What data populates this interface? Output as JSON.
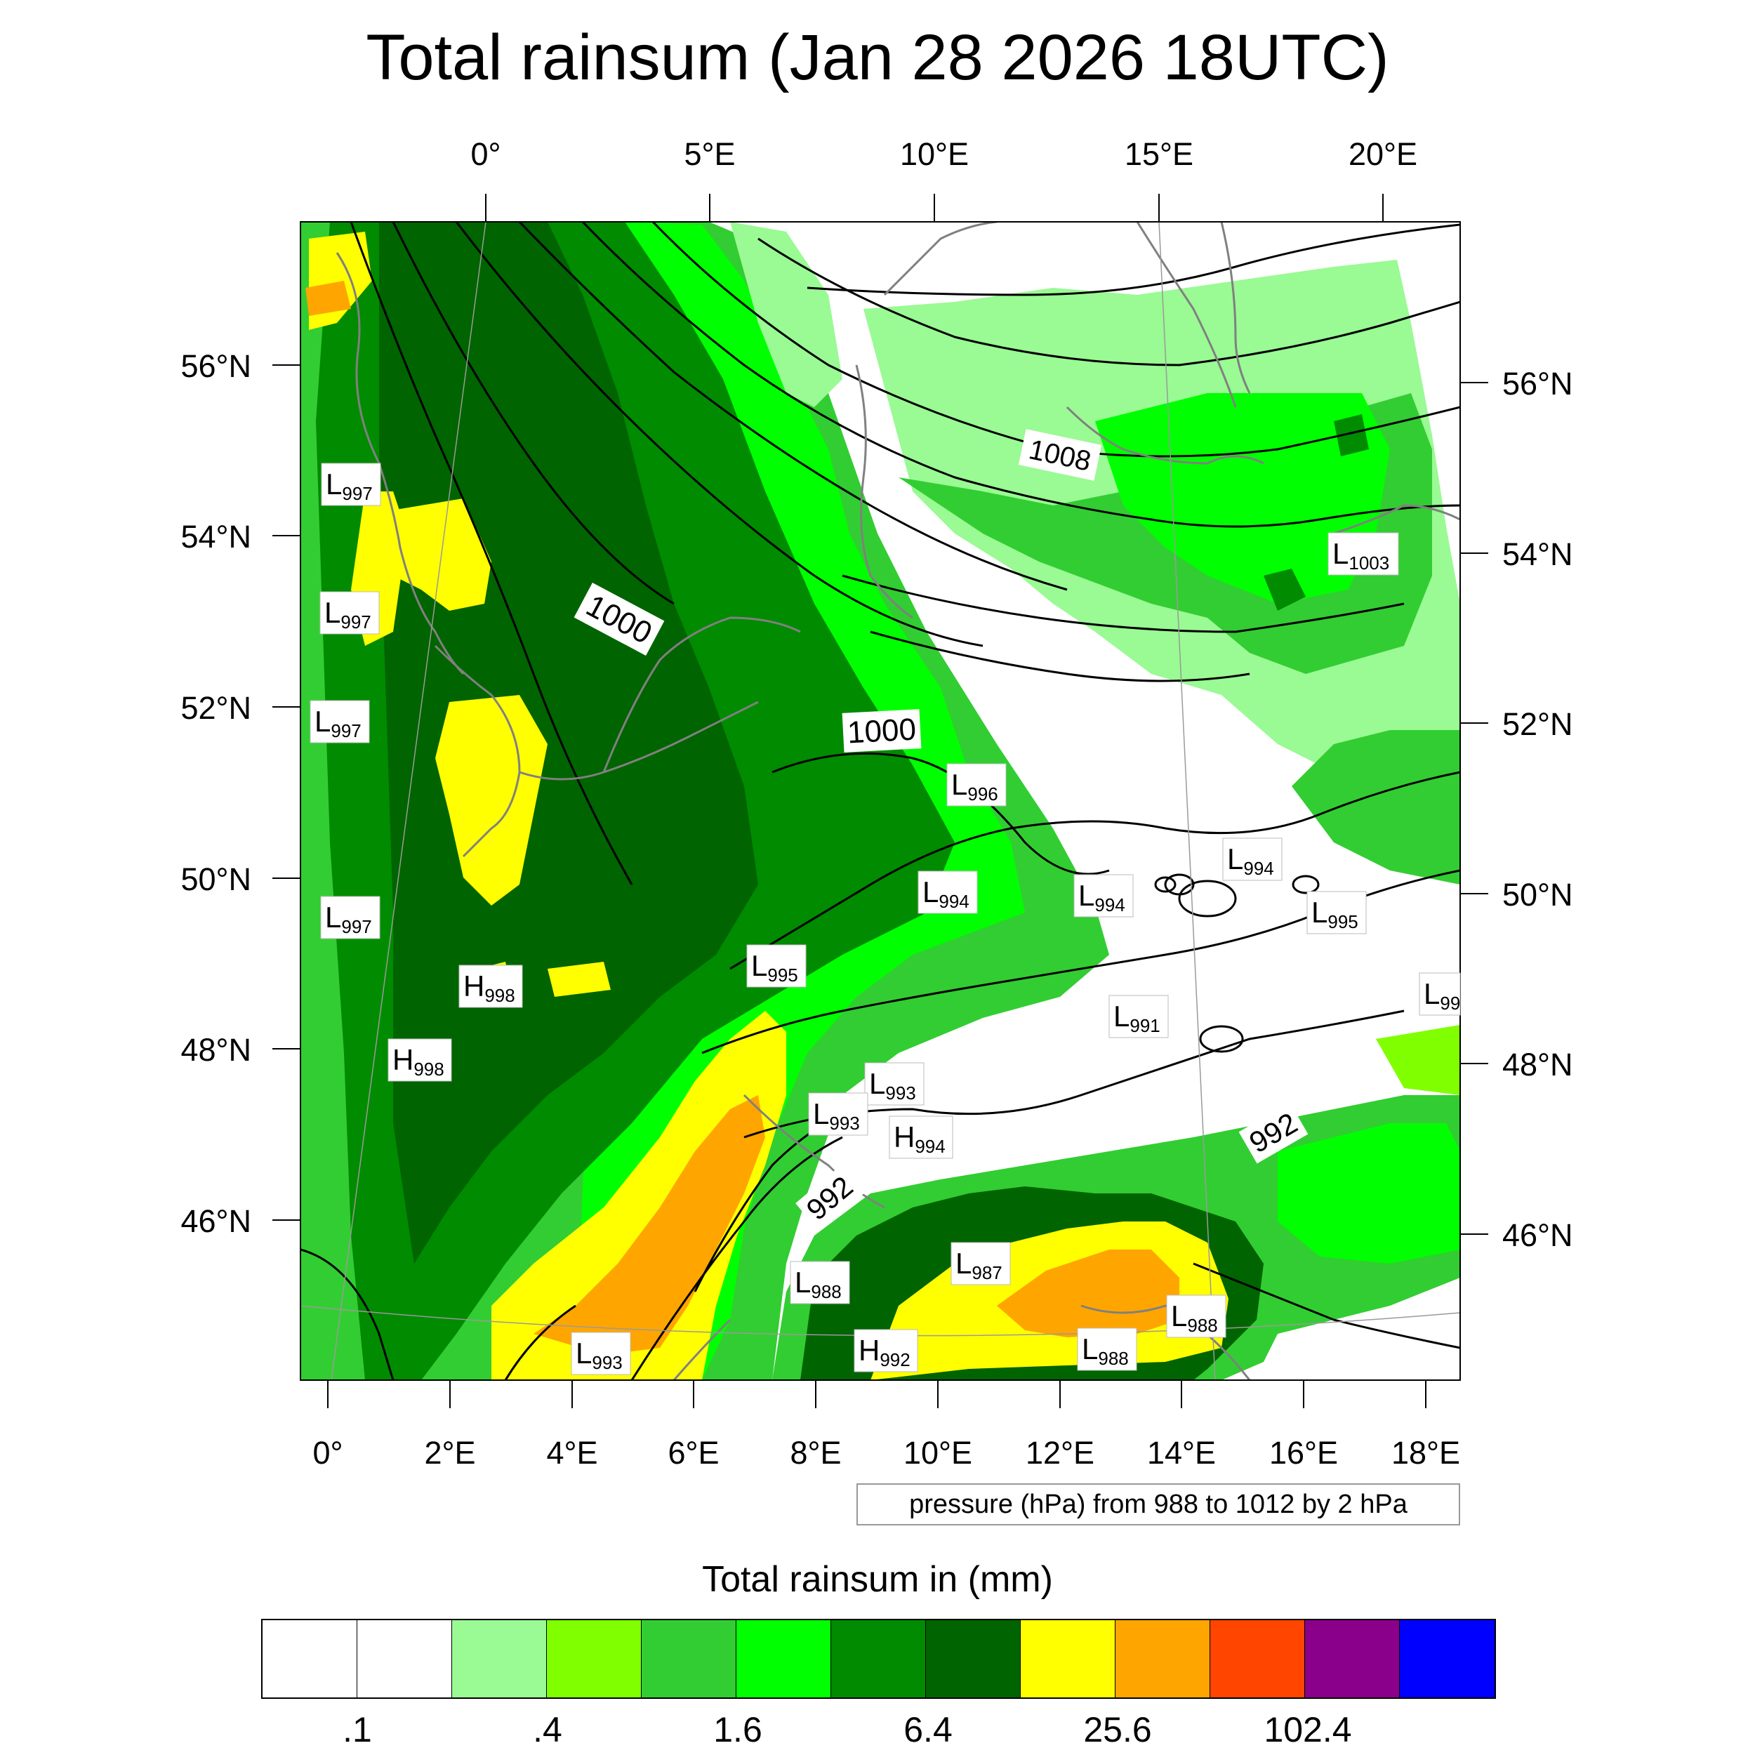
{
  "title": "Total rainsum (Jan 28 2026 18UTC)",
  "top_lon_labels": [
    "0°",
    "5°E",
    "10°E",
    "15°E",
    "20°E"
  ],
  "bottom_lon_labels": [
    "0°",
    "2°E",
    "4°E",
    "6°E",
    "8°E",
    "10°E",
    "12°E",
    "14°E",
    "16°E",
    "18°E"
  ],
  "left_lat_labels": [
    "56°N",
    "54°N",
    "52°N",
    "50°N",
    "48°N",
    "46°N"
  ],
  "right_lat_labels": [
    "56°N",
    "54°N",
    "52°N",
    "50°N",
    "48°N",
    "46°N"
  ],
  "contour_labels": [
    "1008",
    "1000",
    "1000",
    "992",
    "992"
  ],
  "pressure_centers": [
    {
      "type": "L",
      "value": "997"
    },
    {
      "type": "L",
      "value": "997"
    },
    {
      "type": "L",
      "value": "997"
    },
    {
      "type": "L",
      "value": "997"
    },
    {
      "type": "H",
      "value": "998"
    },
    {
      "type": "H",
      "value": "998"
    },
    {
      "type": "L",
      "value": "996"
    },
    {
      "type": "L",
      "value": "994"
    },
    {
      "type": "L",
      "value": "994"
    },
    {
      "type": "L",
      "value": "994"
    },
    {
      "type": "L",
      "value": "995"
    },
    {
      "type": "L",
      "value": "995"
    },
    {
      "type": "L",
      "value": "991"
    },
    {
      "type": "L",
      "value": "99"
    },
    {
      "type": "L",
      "value": "993"
    },
    {
      "type": "L",
      "value": "993"
    },
    {
      "type": "H",
      "value": "994"
    },
    {
      "type": "L",
      "value": "988"
    },
    {
      "type": "L",
      "value": "987"
    },
    {
      "type": "L",
      "value": "988"
    },
    {
      "type": "L",
      "value": "988"
    },
    {
      "type": "H",
      "value": "992"
    },
    {
      "type": "L",
      "value": "993"
    },
    {
      "type": "L",
      "value": "1003"
    }
  ],
  "pressure_note": "pressure (hPa) from 988 to 1012 by 2 hPa",
  "colorbar": {
    "title": "Total rainsum in (mm)",
    "colors": [
      "#ffffff",
      "#ffffff",
      "#9afa94",
      "#80ff00",
      "#32cd32",
      "#00ff00",
      "#008b00",
      "#006400",
      "#ffff00",
      "#ffa500",
      "#ff4500",
      "#8b008b",
      "#0000ff"
    ],
    "labels": [
      ".1",
      ".4",
      "1.6",
      "6.4",
      "25.6",
      "102.4"
    ]
  }
}
